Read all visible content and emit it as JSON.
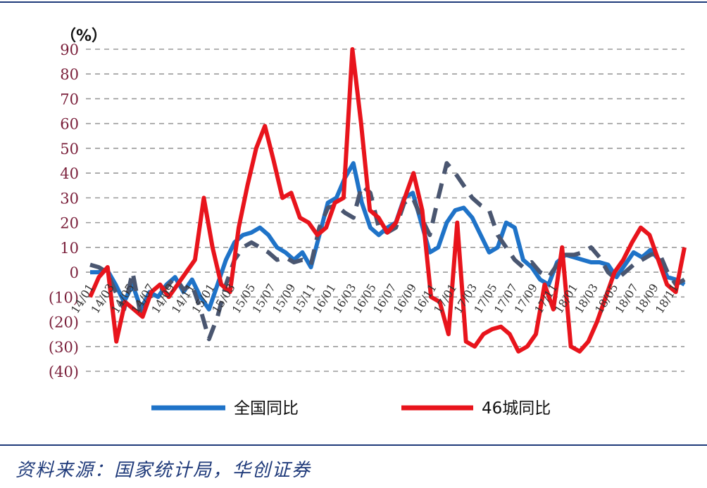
{
  "chart_data": {
    "type": "line",
    "unit_label": "（%）",
    "ylim": [
      -40,
      90
    ],
    "y_ticks": [
      "90",
      "80",
      "70",
      "60",
      "50",
      "40",
      "30",
      "20",
      "10",
      "0",
      "(10)",
      "(20)",
      "(30)",
      "(40)"
    ],
    "grid": true,
    "legend_position": "bottom",
    "x_tick_labels": [
      "14/01",
      "14/03",
      "14/05",
      "14/07",
      "14/09",
      "14/11",
      "15/01",
      "15/03",
      "15/05",
      "15/07",
      "15/09",
      "15/11",
      "16/01",
      "16/03",
      "16/05",
      "16/07",
      "16/09",
      "16/11",
      "17/01",
      "17/03",
      "17/05",
      "17/07",
      "17/09",
      "17/11",
      "18/01",
      "18/03",
      "18/05",
      "18/07",
      "18/09",
      "18/11"
    ],
    "series": [
      {
        "name": "全国同比",
        "color": "#1f73c8",
        "style": "solid",
        "values": [
          0,
          0,
          1,
          -5,
          -12,
          -5,
          -15,
          -8,
          -10,
          -5,
          -2,
          -8,
          -3,
          -10,
          -15,
          -5,
          5,
          12,
          15,
          16,
          18,
          15,
          10,
          8,
          5,
          8,
          2,
          15,
          28,
          30,
          38,
          44,
          28,
          18,
          15,
          18,
          20,
          30,
          32,
          20,
          8,
          10,
          20,
          25,
          26,
          22,
          15,
          8,
          10,
          20,
          18,
          5,
          2,
          -3,
          -5,
          4,
          7,
          6,
          5,
          4,
          4,
          3,
          -2,
          3,
          8,
          6,
          9,
          5,
          -2,
          -3,
          -5
        ]
      },
      {
        "name": "",
        "color": "#4a5670",
        "style": "dashed",
        "values": [
          3,
          2,
          0,
          -8,
          -15,
          0,
          -18,
          -10,
          -8,
          -6,
          -2,
          -7,
          -5,
          -15,
          -27,
          -18,
          -5,
          5,
          10,
          12,
          10,
          8,
          5,
          6,
          4,
          5,
          3,
          18,
          26,
          27,
          24,
          22,
          35,
          32,
          18,
          16,
          18,
          28,
          30,
          22,
          15,
          30,
          44,
          40,
          35,
          30,
          27,
          25,
          15,
          10,
          5,
          2,
          4,
          0,
          -2,
          3,
          7,
          7,
          8,
          10,
          6,
          0,
          -3,
          0,
          3,
          5,
          7,
          8,
          0,
          -5,
          -3
        ]
      },
      {
        "name": "46城同比",
        "color": "#e8141c",
        "style": "solid",
        "values": [
          -10,
          -2,
          2,
          -28,
          -12,
          -15,
          -18,
          -8,
          -5,
          -10,
          -5,
          0,
          5,
          30,
          10,
          -5,
          -8,
          18,
          35,
          50,
          59,
          45,
          30,
          32,
          22,
          20,
          15,
          18,
          28,
          30,
          90,
          60,
          25,
          22,
          16,
          20,
          30,
          40,
          25,
          -10,
          -12,
          -25,
          20,
          -28,
          -30,
          -25,
          -23,
          -22,
          -25,
          -32,
          -30,
          -25,
          -5,
          -15,
          10,
          -30,
          -32,
          -28,
          -20,
          -10,
          0,
          5,
          12,
          18,
          15,
          5,
          -5,
          -8,
          10
        ]
      }
    ]
  },
  "source_note": "资料来源：国家统计局，华创证券"
}
